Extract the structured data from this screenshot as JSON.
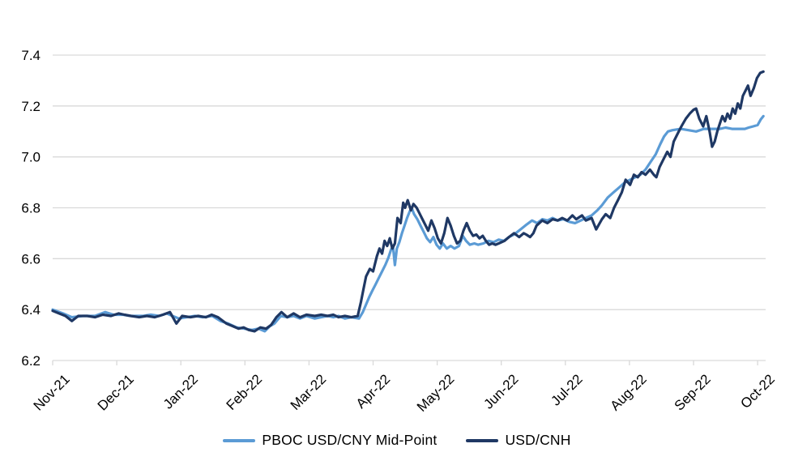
{
  "chart_data": {
    "type": "line",
    "x_axis": {
      "categories": [
        "Nov-21",
        "Dec-21",
        "Jan-22",
        "Feb-22",
        "Mar-22",
        "Apr-22",
        "May-22",
        "Jun-22",
        "Jul-22",
        "Aug-22",
        "Sep-22",
        "Oct-22"
      ],
      "unit": "month-index from Nov-21 tick"
    },
    "y_axis": {
      "ticks": [
        6.2,
        6.4,
        6.6,
        6.8,
        7.0,
        7.2,
        7.4
      ],
      "min": 6.2,
      "max": 7.4
    },
    "grid": true,
    "legend_position": "bottom",
    "colors": {
      "background": "#FFFFFF",
      "grid": "#D9D9D9",
      "text": "#000000",
      "pboc_line": "#5B9BD5",
      "cnh_line": "#1F3864"
    },
    "series": [
      {
        "name": "PBOC USD/CNY Mid-Point",
        "color": "#5B9BD5",
        "points": [
          [
            0.0,
            6.4
          ],
          [
            0.16,
            6.385
          ],
          [
            0.3,
            6.37
          ],
          [
            0.47,
            6.375
          ],
          [
            0.66,
            6.375
          ],
          [
            0.82,
            6.39
          ],
          [
            0.95,
            6.38
          ],
          [
            1.1,
            6.38
          ],
          [
            1.22,
            6.375
          ],
          [
            1.41,
            6.375
          ],
          [
            1.53,
            6.38
          ],
          [
            1.66,
            6.375
          ],
          [
            1.78,
            6.385
          ],
          [
            1.87,
            6.375
          ],
          [
            1.97,
            6.365
          ],
          [
            2.09,
            6.37
          ],
          [
            2.22,
            6.375
          ],
          [
            2.34,
            6.37
          ],
          [
            2.49,
            6.375
          ],
          [
            2.62,
            6.355
          ],
          [
            2.74,
            6.345
          ],
          [
            2.87,
            6.33
          ],
          [
            2.99,
            6.325
          ],
          [
            3.11,
            6.32
          ],
          [
            3.21,
            6.325
          ],
          [
            3.31,
            6.315
          ],
          [
            3.39,
            6.335
          ],
          [
            3.46,
            6.345
          ],
          [
            3.56,
            6.375
          ],
          [
            3.66,
            6.37
          ],
          [
            3.76,
            6.375
          ],
          [
            3.86,
            6.365
          ],
          [
            3.96,
            6.375
          ],
          [
            4.09,
            6.365
          ],
          [
            4.19,
            6.37
          ],
          [
            4.29,
            6.375
          ],
          [
            4.38,
            6.37
          ],
          [
            4.46,
            6.375
          ],
          [
            4.56,
            6.365
          ],
          [
            4.66,
            6.37
          ],
          [
            4.78,
            6.365
          ],
          [
            4.84,
            6.39
          ],
          [
            4.89,
            6.42
          ],
          [
            4.94,
            6.45
          ],
          [
            4.99,
            6.475
          ],
          [
            5.04,
            6.5
          ],
          [
            5.09,
            6.525
          ],
          [
            5.14,
            6.55
          ],
          [
            5.19,
            6.575
          ],
          [
            5.24,
            6.605
          ],
          [
            5.28,
            6.635
          ],
          [
            5.31,
            6.65
          ],
          [
            5.34,
            6.575
          ],
          [
            5.37,
            6.64
          ],
          [
            5.41,
            6.665
          ],
          [
            5.45,
            6.7
          ],
          [
            5.49,
            6.73
          ],
          [
            5.53,
            6.76
          ],
          [
            5.57,
            6.785
          ],
          [
            5.6,
            6.8
          ],
          [
            5.64,
            6.775
          ],
          [
            5.69,
            6.755
          ],
          [
            5.74,
            6.73
          ],
          [
            5.79,
            6.705
          ],
          [
            5.84,
            6.68
          ],
          [
            5.89,
            6.665
          ],
          [
            5.94,
            6.685
          ],
          [
            5.99,
            6.655
          ],
          [
            6.04,
            6.64
          ],
          [
            6.09,
            6.66
          ],
          [
            6.15,
            6.64
          ],
          [
            6.21,
            6.65
          ],
          [
            6.27,
            6.64
          ],
          [
            6.34,
            6.65
          ],
          [
            6.4,
            6.69
          ],
          [
            6.45,
            6.67
          ],
          [
            6.51,
            6.655
          ],
          [
            6.58,
            6.66
          ],
          [
            6.64,
            6.655
          ],
          [
            6.72,
            6.66
          ],
          [
            6.8,
            6.67
          ],
          [
            6.88,
            6.665
          ],
          [
            6.96,
            6.675
          ],
          [
            7.04,
            6.67
          ],
          [
            7.12,
            6.685
          ],
          [
            7.2,
            6.695
          ],
          [
            7.3,
            6.715
          ],
          [
            7.4,
            6.735
          ],
          [
            7.48,
            6.75
          ],
          [
            7.56,
            6.74
          ],
          [
            7.64,
            6.755
          ],
          [
            7.72,
            6.75
          ],
          [
            7.8,
            6.76
          ],
          [
            7.88,
            6.75
          ],
          [
            7.97,
            6.755
          ],
          [
            8.06,
            6.745
          ],
          [
            8.15,
            6.74
          ],
          [
            8.24,
            6.75
          ],
          [
            8.32,
            6.76
          ],
          [
            8.41,
            6.77
          ],
          [
            8.5,
            6.79
          ],
          [
            8.57,
            6.81
          ],
          [
            8.66,
            6.84
          ],
          [
            8.75,
            6.86
          ],
          [
            8.84,
            6.88
          ],
          [
            8.93,
            6.9
          ],
          [
            9.01,
            6.91
          ],
          [
            9.09,
            6.92
          ],
          [
            9.17,
            6.93
          ],
          [
            9.25,
            6.95
          ],
          [
            9.33,
            6.98
          ],
          [
            9.41,
            7.01
          ],
          [
            9.48,
            7.05
          ],
          [
            9.54,
            7.08
          ],
          [
            9.6,
            7.1
          ],
          [
            9.67,
            7.105
          ],
          [
            9.8,
            7.11
          ],
          [
            9.92,
            7.105
          ],
          [
            10.04,
            7.1
          ],
          [
            10.16,
            7.11
          ],
          [
            10.29,
            7.11
          ],
          [
            10.41,
            7.11
          ],
          [
            10.5,
            7.115
          ],
          [
            10.6,
            7.11
          ],
          [
            10.7,
            7.11
          ],
          [
            10.8,
            7.11
          ],
          [
            10.86,
            7.115
          ],
          [
            10.93,
            7.12
          ],
          [
            11.0,
            7.125
          ],
          [
            11.05,
            7.148
          ],
          [
            11.09,
            7.16
          ]
        ]
      },
      {
        "name": "USD/CNH",
        "color": "#1F3864",
        "points": [
          [
            0.0,
            6.395
          ],
          [
            0.1,
            6.385
          ],
          [
            0.2,
            6.375
          ],
          [
            0.3,
            6.355
          ],
          [
            0.4,
            6.375
          ],
          [
            0.54,
            6.375
          ],
          [
            0.66,
            6.37
          ],
          [
            0.78,
            6.38
          ],
          [
            0.91,
            6.375
          ],
          [
            1.03,
            6.385
          ],
          [
            1.12,
            6.38
          ],
          [
            1.22,
            6.375
          ],
          [
            1.35,
            6.37
          ],
          [
            1.47,
            6.375
          ],
          [
            1.59,
            6.37
          ],
          [
            1.72,
            6.38
          ],
          [
            1.83,
            6.39
          ],
          [
            1.93,
            6.345
          ],
          [
            2.02,
            6.375
          ],
          [
            2.15,
            6.37
          ],
          [
            2.27,
            6.375
          ],
          [
            2.39,
            6.37
          ],
          [
            2.48,
            6.38
          ],
          [
            2.58,
            6.37
          ],
          [
            2.71,
            6.345
          ],
          [
            2.81,
            6.335
          ],
          [
            2.9,
            6.325
          ],
          [
            2.98,
            6.33
          ],
          [
            3.06,
            6.32
          ],
          [
            3.15,
            6.315
          ],
          [
            3.24,
            6.33
          ],
          [
            3.33,
            6.325
          ],
          [
            3.41,
            6.34
          ],
          [
            3.49,
            6.37
          ],
          [
            3.57,
            6.39
          ],
          [
            3.66,
            6.37
          ],
          [
            3.76,
            6.385
          ],
          [
            3.86,
            6.37
          ],
          [
            3.96,
            6.38
          ],
          [
            4.09,
            6.375
          ],
          [
            4.19,
            6.38
          ],
          [
            4.29,
            6.375
          ],
          [
            4.38,
            6.38
          ],
          [
            4.46,
            6.37
          ],
          [
            4.56,
            6.375
          ],
          [
            4.66,
            6.37
          ],
          [
            4.76,
            6.375
          ],
          [
            4.81,
            6.43
          ],
          [
            4.85,
            6.48
          ],
          [
            4.89,
            6.53
          ],
          [
            4.95,
            6.56
          ],
          [
            5.0,
            6.55
          ],
          [
            5.06,
            6.61
          ],
          [
            5.1,
            6.64
          ],
          [
            5.14,
            6.62
          ],
          [
            5.18,
            6.67
          ],
          [
            5.22,
            6.65
          ],
          [
            5.26,
            6.68
          ],
          [
            5.3,
            6.64
          ],
          [
            5.34,
            6.66
          ],
          [
            5.38,
            6.76
          ],
          [
            5.43,
            6.74
          ],
          [
            5.47,
            6.82
          ],
          [
            5.5,
            6.8
          ],
          [
            5.54,
            6.83
          ],
          [
            5.59,
            6.79
          ],
          [
            5.63,
            6.815
          ],
          [
            5.68,
            6.8
          ],
          [
            5.72,
            6.78
          ],
          [
            5.77,
            6.755
          ],
          [
            5.82,
            6.73
          ],
          [
            5.86,
            6.71
          ],
          [
            5.91,
            6.75
          ],
          [
            5.96,
            6.72
          ],
          [
            6.01,
            6.68
          ],
          [
            6.06,
            6.66
          ],
          [
            6.11,
            6.7
          ],
          [
            6.16,
            6.76
          ],
          [
            6.21,
            6.73
          ],
          [
            6.26,
            6.69
          ],
          [
            6.31,
            6.66
          ],
          [
            6.36,
            6.67
          ],
          [
            6.41,
            6.71
          ],
          [
            6.46,
            6.74
          ],
          [
            6.51,
            6.71
          ],
          [
            6.56,
            6.69
          ],
          [
            6.61,
            6.695
          ],
          [
            6.66,
            6.68
          ],
          [
            6.71,
            6.69
          ],
          [
            6.76,
            6.67
          ],
          [
            6.81,
            6.655
          ],
          [
            6.86,
            6.66
          ],
          [
            6.91,
            6.655
          ],
          [
            6.96,
            6.66
          ],
          [
            7.05,
            6.67
          ],
          [
            7.12,
            6.685
          ],
          [
            7.2,
            6.7
          ],
          [
            7.28,
            6.685
          ],
          [
            7.35,
            6.7
          ],
          [
            7.39,
            6.695
          ],
          [
            7.45,
            6.685
          ],
          [
            7.5,
            6.7
          ],
          [
            7.55,
            6.73
          ],
          [
            7.64,
            6.75
          ],
          [
            7.72,
            6.74
          ],
          [
            7.8,
            6.755
          ],
          [
            7.88,
            6.75
          ],
          [
            7.95,
            6.76
          ],
          [
            8.03,
            6.75
          ],
          [
            8.11,
            6.77
          ],
          [
            8.17,
            6.755
          ],
          [
            8.26,
            6.77
          ],
          [
            8.32,
            6.75
          ],
          [
            8.41,
            6.76
          ],
          [
            8.48,
            6.715
          ],
          [
            8.57,
            6.755
          ],
          [
            8.63,
            6.775
          ],
          [
            8.7,
            6.76
          ],
          [
            8.76,
            6.8
          ],
          [
            8.82,
            6.83
          ],
          [
            8.88,
            6.86
          ],
          [
            8.94,
            6.91
          ],
          [
            9.01,
            6.89
          ],
          [
            9.07,
            6.93
          ],
          [
            9.13,
            6.92
          ],
          [
            9.19,
            6.94
          ],
          [
            9.25,
            6.93
          ],
          [
            9.32,
            6.95
          ],
          [
            9.38,
            6.93
          ],
          [
            9.42,
            6.92
          ],
          [
            9.47,
            6.96
          ],
          [
            9.53,
            6.99
          ],
          [
            9.59,
            7.02
          ],
          [
            9.64,
            7.0
          ],
          [
            9.69,
            7.06
          ],
          [
            9.75,
            7.09
          ],
          [
            9.81,
            7.12
          ],
          [
            9.88,
            7.15
          ],
          [
            9.94,
            7.17
          ],
          [
            10.0,
            7.185
          ],
          [
            10.04,
            7.19
          ],
          [
            10.09,
            7.15
          ],
          [
            10.15,
            7.12
          ],
          [
            10.2,
            7.16
          ],
          [
            10.25,
            7.1
          ],
          [
            10.29,
            7.04
          ],
          [
            10.33,
            7.06
          ],
          [
            10.37,
            7.1
          ],
          [
            10.41,
            7.13
          ],
          [
            10.45,
            7.16
          ],
          [
            10.49,
            7.14
          ],
          [
            10.53,
            7.17
          ],
          [
            10.57,
            7.15
          ],
          [
            10.61,
            7.19
          ],
          [
            10.65,
            7.17
          ],
          [
            10.69,
            7.21
          ],
          [
            10.73,
            7.19
          ],
          [
            10.77,
            7.24
          ],
          [
            10.81,
            7.26
          ],
          [
            10.85,
            7.28
          ],
          [
            10.89,
            7.24
          ],
          [
            10.94,
            7.27
          ],
          [
            10.99,
            7.31
          ],
          [
            11.04,
            7.33
          ],
          [
            11.09,
            7.335
          ]
        ]
      }
    ]
  },
  "legend": {
    "pboc_label": "PBOC USD/CNY Mid-Point",
    "cnh_label": "USD/CNH"
  }
}
